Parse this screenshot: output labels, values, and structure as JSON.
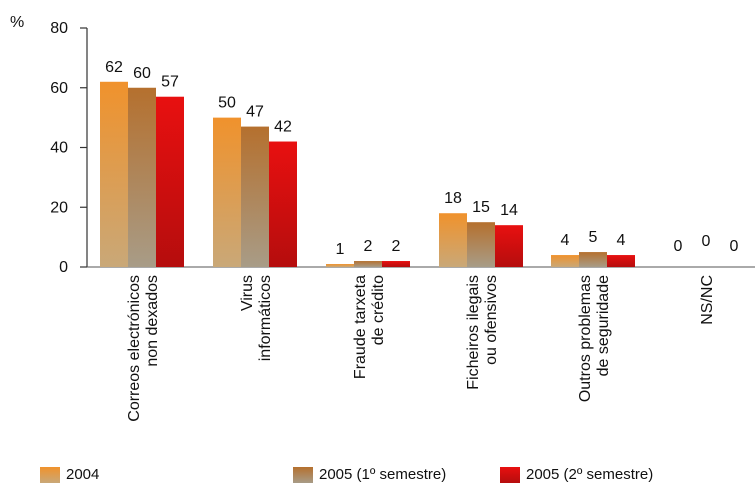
{
  "chart_data": {
    "type": "bar",
    "ylabel": "%",
    "ylim": [
      0,
      80
    ],
    "yticks": [
      0,
      20,
      40,
      60,
      80
    ],
    "categories": [
      [
        "Correos electrónicos",
        "non dexados"
      ],
      [
        "Virus",
        "informáticos"
      ],
      [
        "Fraude tarxeta",
        "de crédito"
      ],
      [
        "Ficheiros ilegais",
        "ou ofensivos"
      ],
      [
        "Outros problemas",
        "de seguridade"
      ],
      [
        "NS/NC"
      ]
    ],
    "series": [
      {
        "name": "2004",
        "values": [
          62,
          50,
          1,
          18,
          4,
          0
        ],
        "color_top": "#f0922c",
        "color_bottom": "#c9a878"
      },
      {
        "name": "2005 (1º semestre)",
        "values": [
          60,
          47,
          2,
          15,
          5,
          0
        ],
        "color_top": "#b5702e",
        "color_bottom": "#a89c87"
      },
      {
        "name": "2005 (2º semestre)",
        "values": [
          57,
          42,
          2,
          14,
          4,
          0
        ],
        "color_top": "#e81010",
        "color_bottom": "#b50d0d"
      }
    ],
    "legend_position": "bottom",
    "grid": false
  }
}
